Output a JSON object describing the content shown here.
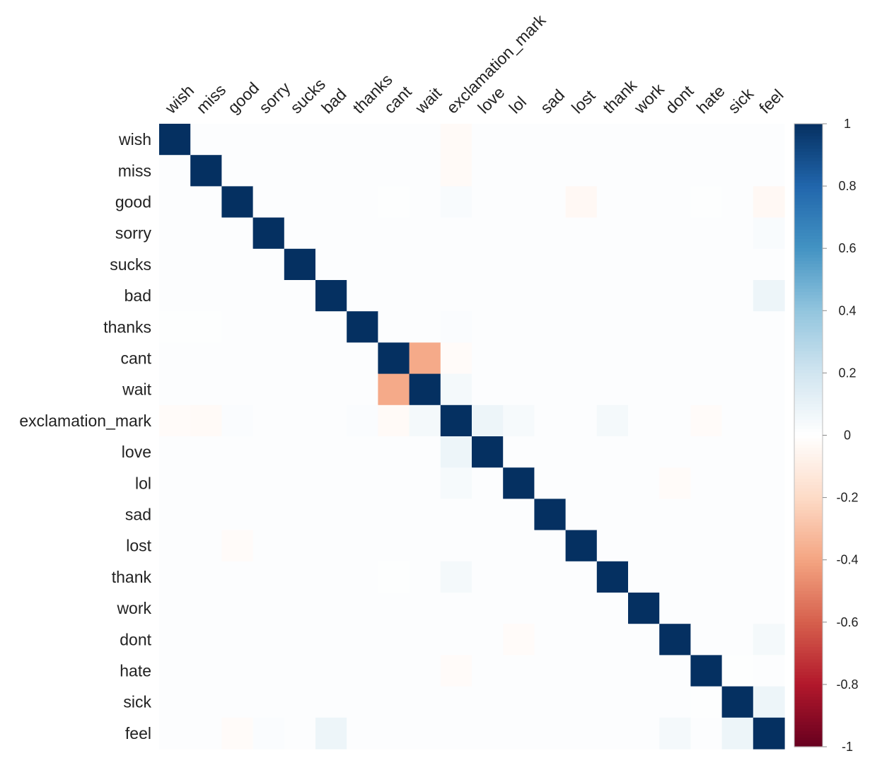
{
  "chart_data": {
    "type": "heatmap",
    "title": "",
    "xlabel": "",
    "ylabel": "",
    "labels": [
      "wish",
      "miss",
      "good",
      "sorry",
      "sucks",
      "bad",
      "thanks",
      "cant",
      "wait",
      "exclamation_mark",
      "love",
      "lol",
      "sad",
      "lost",
      "thank",
      "work",
      "dont",
      "hate",
      "sick",
      "feel"
    ],
    "values": [
      [
        1,
        0,
        0,
        0,
        0,
        0,
        0,
        0,
        0,
        -0.03,
        0,
        0,
        0,
        0,
        0,
        0,
        0,
        0,
        0,
        0
      ],
      [
        0,
        1,
        0,
        0,
        0,
        0,
        0,
        0,
        0,
        -0.03,
        0,
        0,
        0,
        0,
        0,
        0,
        0,
        0,
        0,
        0
      ],
      [
        0,
        0,
        1,
        0,
        0,
        0,
        0,
        0.01,
        0,
        0.03,
        0,
        0,
        0,
        -0.04,
        0,
        0,
        0,
        0.01,
        0,
        -0.04
      ],
      [
        0,
        0,
        0,
        1,
        0,
        0,
        0,
        0,
        0,
        0,
        0,
        0,
        0,
        0,
        0,
        0,
        0,
        0,
        0,
        0.03
      ],
      [
        0,
        0,
        0,
        0,
        1,
        0,
        0,
        0,
        0,
        0,
        0,
        0,
        0,
        0,
        0,
        0,
        0,
        0,
        0,
        0
      ],
      [
        0,
        0,
        0,
        0,
        0,
        1,
        0,
        0,
        0,
        0,
        0,
        0,
        0,
        0,
        0,
        0,
        0,
        0,
        0,
        0.08
      ],
      [
        0.01,
        0.01,
        0,
        0,
        0,
        0,
        1,
        0,
        0,
        0.02,
        0,
        0,
        0,
        0,
        0,
        0,
        0,
        0,
        0,
        0
      ],
      [
        0,
        0,
        0,
        0,
        0,
        0,
        0,
        1,
        -0.38,
        -0.02,
        0,
        0,
        0,
        0,
        0,
        0,
        0,
        0,
        0,
        0
      ],
      [
        0,
        0,
        0,
        0,
        0,
        0,
        0,
        -0.38,
        1,
        0.05,
        0,
        0,
        0,
        0,
        0,
        0,
        0,
        0,
        0,
        0
      ],
      [
        -0.02,
        -0.03,
        0.02,
        0,
        0,
        0,
        0.02,
        -0.03,
        0.05,
        1,
        0.08,
        0.04,
        0,
        0,
        0.05,
        0,
        0,
        -0.02,
        0,
        0
      ],
      [
        0,
        0,
        0,
        0,
        0,
        0,
        0,
        0,
        0,
        0.08,
        1,
        0,
        0,
        0,
        0,
        0,
        0,
        0,
        0,
        0
      ],
      [
        0,
        0,
        0,
        0,
        0,
        0,
        0,
        0,
        0,
        0.04,
        0,
        1,
        0,
        0,
        0,
        0,
        -0.02,
        0,
        0,
        0
      ],
      [
        0,
        0,
        0,
        0,
        0,
        0,
        0,
        0,
        0,
        0,
        0,
        0,
        1,
        0,
        0,
        0,
        0,
        0,
        0,
        0
      ],
      [
        0,
        0,
        -0.02,
        0,
        0,
        0,
        0,
        0,
        0,
        0,
        0,
        0,
        0,
        1,
        0,
        0,
        0,
        0,
        0,
        0
      ],
      [
        0,
        0,
        0,
        0,
        0,
        0,
        0,
        0.01,
        0,
        0.05,
        0,
        0,
        0,
        0,
        1,
        0,
        0,
        0,
        0,
        0
      ],
      [
        0,
        0,
        0,
        0,
        0,
        0,
        0,
        0,
        0,
        0,
        0,
        0,
        0,
        0,
        0,
        1,
        0,
        0,
        0,
        0
      ],
      [
        0,
        0,
        0,
        0,
        0,
        0,
        0,
        0,
        0,
        0,
        0,
        -0.02,
        0,
        0,
        0,
        0,
        1,
        0,
        0,
        0.05
      ],
      [
        0,
        0,
        0,
        0,
        0,
        0,
        0,
        0,
        0,
        -0.02,
        0,
        0,
        0,
        0,
        0,
        0,
        0,
        1,
        0.01,
        0
      ],
      [
        0,
        0,
        0,
        0,
        0,
        0,
        0,
        0,
        0,
        0,
        0,
        0,
        0,
        0,
        0,
        0,
        0,
        0.01,
        1,
        0.08
      ],
      [
        0,
        0,
        -0.02,
        0.02,
        0,
        0.08,
        0,
        0,
        0,
        0,
        0,
        0,
        0,
        0,
        0,
        0,
        0.05,
        0,
        0.08,
        1
      ]
    ],
    "colorbar": {
      "range": [
        -1,
        1
      ],
      "ticks": [
        "1",
        "0.8",
        "0.6",
        "0.4",
        "0.2",
        "0",
        "-0.2",
        "-0.4",
        "-0.6",
        "-0.8",
        "-1"
      ],
      "tick_values": [
        1,
        0.8,
        0.6,
        0.4,
        0.2,
        0,
        -0.2,
        -0.4,
        -0.6,
        -0.8,
        -1
      ],
      "colors": [
        "#67001F",
        "#B2182B",
        "#D6604D",
        "#F4A582",
        "#FDDBC7",
        "#FFFFFF",
        "#D1E5F0",
        "#92C5DE",
        "#4393C3",
        "#2166AC",
        "#053061"
      ]
    },
    "grid": false,
    "legend_position": "right"
  }
}
